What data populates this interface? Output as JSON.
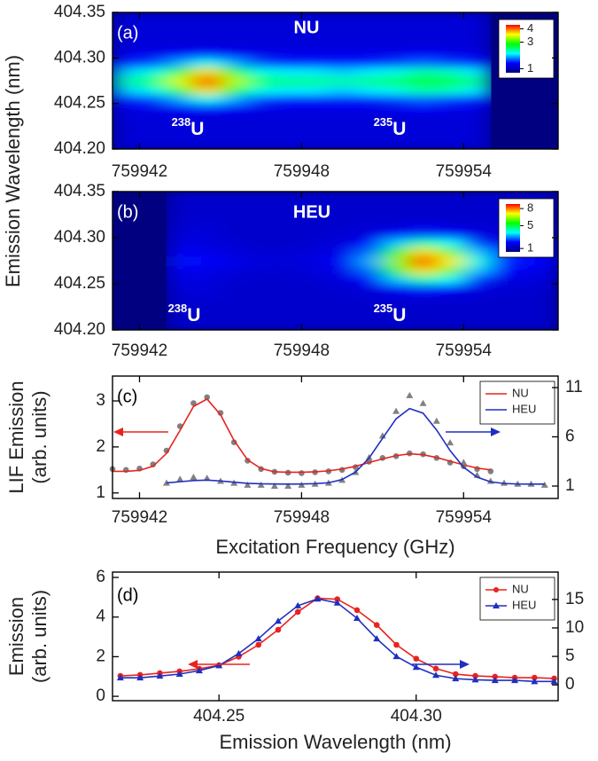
{
  "chart_data": [
    {
      "type": "heatmap",
      "annotations": [
        "(a)",
        "NU",
        {
          "sup": "238",
          "text": "U"
        },
        {
          "sup": "235",
          "text": "U"
        }
      ],
      "ylabel": "Emission Wavelength (nm)",
      "xlim": [
        759941,
        759957.5
      ],
      "xticks": [
        759942,
        759948,
        759954
      ],
      "ylim": [
        404.2,
        404.35
      ],
      "yticks": [
        {
          "value": 404.2,
          "label": "404.20"
        },
        404.25,
        {
          "value": 404.3,
          "label": "404.30"
        },
        404.35
      ],
      "xbins": [
        759941,
        759942,
        759943,
        759944,
        759945,
        759946,
        759947,
        759948,
        759949,
        759950,
        759951,
        759952,
        759953,
        759954,
        759955,
        759956,
        759957.5
      ],
      "ybins": [
        404.2,
        404.21,
        404.22,
        404.23,
        404.24,
        404.25,
        404.26,
        404.27,
        404.28,
        404.29,
        404.3,
        404.31,
        404.32,
        404.33,
        404.34,
        404.35
      ],
      "z": [
        [
          1.2,
          1.2,
          1.2,
          1.2,
          1.2,
          1.2,
          1.2,
          1.2,
          1.2,
          1.2,
          1.2,
          1.2,
          1.2,
          1.2,
          null,
          null
        ],
        [
          1.2,
          1.2,
          1.2,
          1.2,
          1.2,
          1.2,
          1.2,
          1.2,
          1.2,
          1.2,
          1.2,
          1.2,
          1.2,
          1.2,
          null,
          null
        ],
        [
          1.2,
          1.2,
          1.2,
          1.2,
          1.2,
          1.2,
          1.2,
          1.2,
          1.2,
          1.2,
          1.2,
          1.2,
          1.2,
          1.2,
          null,
          null
        ],
        [
          1.2,
          1.2,
          1.2,
          1.2,
          1.2,
          1.2,
          1.2,
          1.2,
          1.2,
          1.2,
          1.2,
          1.2,
          1.2,
          1.2,
          null,
          null
        ],
        [
          1.3,
          1.3,
          1.4,
          1.5,
          1.4,
          1.3,
          1.3,
          1.3,
          1.3,
          1.3,
          1.3,
          1.4,
          1.3,
          1.3,
          null,
          null
        ],
        [
          1.5,
          1.6,
          1.9,
          2.2,
          1.9,
          1.6,
          1.5,
          1.5,
          1.5,
          1.5,
          1.6,
          1.7,
          1.6,
          1.5,
          null,
          null
        ],
        [
          2.0,
          2.2,
          3.0,
          3.7,
          2.9,
          2.2,
          2.1,
          2.1,
          2.0,
          2.1,
          2.2,
          2.4,
          2.3,
          2.1,
          null,
          null
        ],
        [
          2.4,
          2.6,
          3.5,
          4.3,
          3.4,
          2.6,
          2.5,
          2.5,
          2.4,
          2.5,
          2.6,
          2.8,
          2.7,
          2.5,
          null,
          null
        ],
        [
          2.0,
          2.2,
          3.0,
          3.7,
          2.9,
          2.2,
          2.1,
          2.1,
          2.0,
          2.1,
          2.2,
          2.4,
          2.3,
          2.1,
          null,
          null
        ],
        [
          1.5,
          1.6,
          1.9,
          2.2,
          1.9,
          1.6,
          1.5,
          1.5,
          1.5,
          1.5,
          1.6,
          1.7,
          1.6,
          1.5,
          null,
          null
        ],
        [
          1.3,
          1.3,
          1.4,
          1.5,
          1.4,
          1.3,
          1.3,
          1.3,
          1.3,
          1.3,
          1.3,
          1.4,
          1.3,
          1.3,
          null,
          null
        ],
        [
          1.2,
          1.2,
          1.2,
          1.2,
          1.2,
          1.2,
          1.2,
          1.2,
          1.2,
          1.2,
          1.2,
          1.2,
          1.2,
          1.2,
          null,
          null
        ],
        [
          1.2,
          1.2,
          1.2,
          1.2,
          1.2,
          1.2,
          1.2,
          1.2,
          1.2,
          1.2,
          1.2,
          1.2,
          1.2,
          1.2,
          null,
          null
        ],
        [
          1.2,
          1.2,
          1.2,
          1.2,
          1.2,
          1.2,
          1.2,
          1.2,
          1.2,
          1.2,
          1.2,
          1.2,
          1.2,
          1.2,
          null,
          null
        ],
        [
          1.2,
          1.2,
          1.2,
          1.2,
          1.2,
          1.2,
          1.2,
          1.2,
          1.2,
          1.2,
          1.2,
          1.2,
          1.2,
          1.2,
          null,
          null
        ]
      ],
      "zlim": [
        0.7,
        4.3
      ],
      "colorbar_ticks": [
        1,
        3,
        4
      ],
      "colormap": [
        "#000080",
        "#0000ff",
        "#00ffff",
        "#00ff00",
        "#ffff00",
        "#ff0000"
      ]
    },
    {
      "type": "heatmap",
      "annotations": [
        "(b)",
        "HEU",
        {
          "sup": "238",
          "text": "U"
        },
        {
          "sup": "235",
          "text": "U"
        }
      ],
      "xlim": [
        759941,
        759957.5
      ],
      "xticks": [
        759942,
        759948,
        759954
      ],
      "ylim": [
        404.2,
        404.35
      ],
      "yticks": [
        {
          "value": 404.2,
          "label": "404.20"
        },
        404.25,
        {
          "value": 404.3,
          "label": "404.30"
        },
        404.35
      ],
      "xbins": [
        759941,
        759942,
        759943,
        759944,
        759945,
        759946,
        759947,
        759948,
        759949,
        759950,
        759951,
        759952,
        759953,
        759954,
        759955,
        759956,
        759957.5
      ],
      "ybins": [
        404.2,
        404.21,
        404.22,
        404.23,
        404.24,
        404.25,
        404.26,
        404.27,
        404.28,
        404.29,
        404.3,
        404.31,
        404.32,
        404.33,
        404.34,
        404.35
      ],
      "z": [
        [
          null,
          null,
          1.4,
          1.4,
          1.4,
          1.4,
          1.4,
          1.4,
          1.4,
          1.4,
          1.4,
          1.4,
          1.4,
          1.4,
          1.4,
          1.4
        ],
        [
          null,
          null,
          1.4,
          1.4,
          1.4,
          1.4,
          1.4,
          1.4,
          1.4,
          1.4,
          1.4,
          1.4,
          1.4,
          1.4,
          1.4,
          1.4
        ],
        [
          null,
          null,
          1.4,
          1.4,
          1.4,
          1.4,
          1.4,
          1.4,
          1.4,
          1.4,
          1.4,
          1.4,
          1.4,
          1.4,
          1.4,
          1.4
        ],
        [
          null,
          null,
          1.5,
          1.5,
          1.4,
          1.4,
          1.4,
          1.4,
          1.4,
          1.5,
          1.5,
          1.6,
          1.5,
          1.5,
          1.4,
          1.4
        ],
        [
          null,
          null,
          1.6,
          1.6,
          1.4,
          1.4,
          1.4,
          1.4,
          1.5,
          1.6,
          2.0,
          2.3,
          2.1,
          1.7,
          1.5,
          1.5
        ],
        [
          null,
          null,
          1.7,
          1.6,
          1.5,
          1.4,
          1.4,
          1.5,
          1.6,
          2.1,
          3.4,
          4.4,
          3.8,
          2.4,
          1.7,
          1.6
        ],
        [
          null,
          null,
          1.9,
          1.8,
          1.6,
          1.5,
          1.5,
          1.6,
          1.8,
          2.8,
          5.4,
          7.4,
          6.2,
          3.4,
          2.1,
          1.8
        ],
        [
          null,
          null,
          2.2,
          2.0,
          1.8,
          1.6,
          1.6,
          1.7,
          2.0,
          3.2,
          6.4,
          8.6,
          7.2,
          4.0,
          2.4,
          2.0
        ],
        [
          null,
          null,
          1.9,
          1.8,
          1.6,
          1.5,
          1.5,
          1.6,
          1.8,
          2.8,
          5.4,
          7.4,
          6.2,
          3.4,
          2.1,
          1.8
        ],
        [
          null,
          null,
          1.7,
          1.6,
          1.5,
          1.4,
          1.4,
          1.5,
          1.6,
          2.1,
          3.4,
          4.4,
          3.8,
          2.4,
          1.7,
          1.6
        ],
        [
          null,
          null,
          1.6,
          1.6,
          1.4,
          1.4,
          1.4,
          1.4,
          1.5,
          1.6,
          2.0,
          2.3,
          2.1,
          1.7,
          1.5,
          1.5
        ],
        [
          null,
          null,
          1.5,
          1.5,
          1.4,
          1.4,
          1.4,
          1.4,
          1.4,
          1.5,
          1.5,
          1.6,
          1.5,
          1.5,
          1.4,
          1.4
        ],
        [
          null,
          null,
          1.4,
          1.4,
          1.4,
          1.4,
          1.4,
          1.4,
          1.4,
          1.4,
          1.4,
          1.4,
          1.4,
          1.4,
          1.4,
          1.4
        ],
        [
          null,
          null,
          1.4,
          1.4,
          1.4,
          1.4,
          1.4,
          1.4,
          1.4,
          1.4,
          1.4,
          1.4,
          1.4,
          1.4,
          1.4,
          1.4
        ],
        [
          null,
          null,
          1.4,
          1.4,
          1.4,
          1.4,
          1.4,
          1.4,
          1.4,
          1.4,
          1.4,
          1.4,
          1.4,
          1.4,
          1.4,
          1.4
        ]
      ],
      "zlim": [
        0.4,
        8.8
      ],
      "colorbar_ticks": [
        1,
        5,
        8
      ],
      "colormap": [
        "#000080",
        "#0000ff",
        "#00ffff",
        "#00ff00",
        "#ffff00",
        "#ff0000"
      ]
    },
    {
      "type": "line",
      "annotations": [
        "(c)"
      ],
      "ylabel": [
        "LIF Emission",
        "(arb. units)"
      ],
      "xlabel": "Excitation Frequency (GHz)",
      "xlim": [
        759941,
        759957.5
      ],
      "xticks": [
        759942,
        759948,
        759954
      ],
      "ylim": [
        0.88,
        3.54
      ],
      "yticks": [
        1,
        2,
        3
      ],
      "y2lim": [
        -0.26,
        12.17
      ],
      "y2ticks": [
        1,
        6,
        11
      ],
      "legend": "upper right",
      "series": [
        {
          "color": "#808080",
          "marker": "circle",
          "line": false,
          "x": [
            759941,
            759941.5,
            759942,
            759942.5,
            759943,
            759943.5,
            759944,
            759944.5,
            759945,
            759945.5,
            759946,
            759946.5,
            759947,
            759947.5,
            759948,
            759948.5,
            759949,
            759949.5,
            759950,
            759950.5,
            759951,
            759951.5,
            759952,
            759952.5,
            759953,
            759953.5,
            759954,
            759954.5,
            759955
          ],
          "values": [
            1.52,
            1.5,
            1.53,
            1.62,
            1.92,
            2.45,
            2.95,
            3.08,
            2.74,
            2.1,
            1.7,
            1.52,
            1.46,
            1.44,
            1.43,
            1.45,
            1.47,
            1.5,
            1.56,
            1.68,
            1.76,
            1.8,
            1.86,
            1.84,
            1.76,
            1.66,
            1.58,
            1.52,
            1.47
          ]
        },
        {
          "name": "NU",
          "color": "#e8231f",
          "marker": null,
          "line": true,
          "x": [
            759941,
            759941.5,
            759942,
            759942.5,
            759943,
            759943.5,
            759944,
            759944.5,
            759945,
            759945.5,
            759946,
            759946.5,
            759947,
            759947.5,
            759948,
            759948.5,
            759949,
            759949.5,
            759950,
            759950.5,
            759951,
            759951.5,
            759952,
            759952.5,
            759953,
            759953.5,
            759954,
            759954.5,
            759955
          ],
          "values": [
            1.47,
            1.47,
            1.49,
            1.58,
            1.86,
            2.36,
            2.88,
            3.04,
            2.7,
            2.14,
            1.72,
            1.53,
            1.46,
            1.45,
            1.45,
            1.46,
            1.48,
            1.52,
            1.58,
            1.66,
            1.74,
            1.81,
            1.85,
            1.83,
            1.77,
            1.69,
            1.61,
            1.54,
            1.5
          ]
        },
        {
          "color": "#808080",
          "marker": "triangle",
          "line": false,
          "axis": "y2",
          "x": [
            759943,
            759943.5,
            759944,
            759944.5,
            759945,
            759945.5,
            759946,
            759946.5,
            759947,
            759947.5,
            759948,
            759948.5,
            759949,
            759949.5,
            759950,
            759950.5,
            759951,
            759951.5,
            759952,
            759952.5,
            759953,
            759953.5,
            759954,
            759954.5,
            759955,
            759955.5,
            759956,
            759956.5,
            759957
          ],
          "values": [
            1.3,
            1.7,
            1.9,
            1.8,
            1.5,
            1.3,
            1.1,
            1.1,
            1.0,
            1.0,
            1.1,
            1.2,
            1.3,
            1.6,
            2.4,
            3.9,
            6.1,
            8.6,
            10.2,
            9.4,
            7.6,
            5.4,
            3.4,
            2.1,
            1.5,
            1.3,
            1.2,
            1.2,
            1.1
          ]
        },
        {
          "name": "HEU",
          "color": "#1f2fbf",
          "marker": null,
          "line": true,
          "axis": "y2",
          "x": [
            759943,
            759943.5,
            759944,
            759944.5,
            759945,
            759945.5,
            759946,
            759946.5,
            759947,
            759947.5,
            759948,
            759948.5,
            759949,
            759949.5,
            759950,
            759950.5,
            759951,
            759951.5,
            759952,
            759952.5,
            759953,
            759953.5,
            759954,
            759954.5,
            759955,
            759955.5,
            759956,
            759956.5,
            759957
          ],
          "values": [
            1.32,
            1.44,
            1.56,
            1.6,
            1.52,
            1.39,
            1.28,
            1.23,
            1.21,
            1.2,
            1.21,
            1.24,
            1.34,
            1.66,
            2.42,
            3.85,
            5.85,
            7.83,
            8.87,
            8.4,
            6.69,
            4.6,
            2.91,
            1.9,
            1.43,
            1.26,
            1.21,
            1.2,
            1.2
          ]
        }
      ]
    },
    {
      "type": "line",
      "annotations": [
        "(d)"
      ],
      "ylabel": [
        "Emission",
        "(arb. units)"
      ],
      "xlabel": "Emission Wavelength (nm)",
      "xlim": [
        404.223,
        404.336
      ],
      "xticks": [
        404.25,
        {
          "value": 404.3,
          "label": "404.30"
        }
      ],
      "ylim": [
        -0.22,
        6.27
      ],
      "yticks": [
        0,
        2,
        4,
        6
      ],
      "y2lim": [
        -2.77,
        19.8
      ],
      "y2ticks": [
        0,
        5,
        10,
        15
      ],
      "legend": "upper right",
      "series": [
        {
          "name": "NU",
          "color": "#e8231f",
          "marker": "circle",
          "line": true,
          "x": [
            404.225,
            404.23,
            404.235,
            404.24,
            404.245,
            404.25,
            404.255,
            404.26,
            404.265,
            404.27,
            404.275,
            404.28,
            404.285,
            404.29,
            404.295,
            404.3,
            404.305,
            404.31,
            404.315,
            404.32,
            404.325,
            404.33,
            404.335
          ],
          "values": [
            1.03,
            1.08,
            1.17,
            1.26,
            1.39,
            1.57,
            2.0,
            2.6,
            3.36,
            4.26,
            4.95,
            4.9,
            4.35,
            3.6,
            2.6,
            1.9,
            1.4,
            1.12,
            1.03,
            0.99,
            0.94,
            0.94,
            0.9
          ]
        },
        {
          "name": "HEU",
          "color": "#1f2fbf",
          "marker": "triangle",
          "line": true,
          "axis": "y2",
          "x": [
            404.225,
            404.23,
            404.235,
            404.24,
            404.245,
            404.25,
            404.255,
            404.26,
            404.265,
            404.27,
            404.275,
            404.28,
            404.285,
            404.29,
            404.295,
            404.3,
            404.305,
            404.31,
            404.315,
            404.32,
            404.325,
            404.33,
            404.335
          ],
          "values": [
            1.25,
            1.25,
            1.56,
            1.9,
            2.5,
            3.4,
            5.5,
            8.1,
            11.2,
            13.9,
            15.1,
            14.4,
            11.7,
            8.1,
            5.0,
            3.1,
            1.7,
            1.1,
            0.9,
            0.8,
            0.8,
            0.6,
            0.6
          ]
        }
      ]
    }
  ]
}
